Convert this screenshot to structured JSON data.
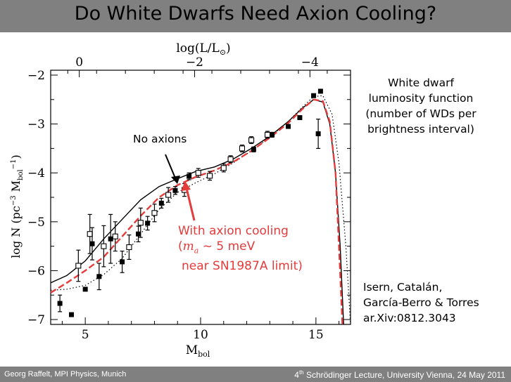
{
  "slide": {
    "title": "Do White Dwarfs Need Axion Cooling?",
    "footer_left": "Georg Raffelt, MPI Physics, Munich",
    "footer_right_prefix": "4",
    "footer_right_sup": "th",
    "footer_right_suffix": " Schrödinger Lecture, University Vienna, 24 May 2011"
  },
  "annotations": {
    "no_axions": "No axions",
    "with_axion_line1": "With axion cooling",
    "with_axion_line2_sym": "m",
    "with_axion_line2_sub": "a",
    "with_axion_line2_rest": " ~ 5 meV",
    "with_axion_line3": "near SN1987A limit)",
    "with_axion_open_paren": "(",
    "wd_desc": [
      "White dwarf",
      "luminosity function",
      "(number of WDs per",
      "brightness interval)"
    ],
    "citation": [
      "Isern, Catalán,",
      "García-Berro & Torres",
      "ar.Xiv:0812.3043"
    ]
  },
  "colors": {
    "title_bar": "#808080",
    "axion_curve": "#e53b3b",
    "data_points": "#000000"
  },
  "chart_data": {
    "type": "scatter",
    "xlabel": "M_bol",
    "ylabel": "log N (pc^-3 M_bol^-1)",
    "top_axis_label": "log(L/L_sun)",
    "xlim": [
      3.5,
      16.5
    ],
    "ylim": [
      -7.1,
      -1.9
    ],
    "xticks": [
      5,
      10,
      15
    ],
    "yticks": [
      -2,
      -3,
      -4,
      -5,
      -6,
      -7
    ],
    "top_ticks": [
      {
        "label": "0",
        "mbol": 4.74
      },
      {
        "label": "−2",
        "mbol": 9.74
      },
      {
        "label": "−4",
        "mbol": 14.74
      }
    ],
    "filled_points": [
      {
        "x": 3.9,
        "y": -6.67,
        "e": 0.17
      },
      {
        "x": 4.4,
        "y": -6.9
      },
      {
        "x": 5.0,
        "y": -6.38
      },
      {
        "x": 5.3,
        "y": -5.45,
        "e": 0.33
      },
      {
        "x": 5.6,
        "y": -6.12,
        "e": 0.27
      },
      {
        "x": 6.1,
        "y": -5.35,
        "e": 0.5
      },
      {
        "x": 6.6,
        "y": -5.82,
        "e": 0.22
      },
      {
        "x": 7.3,
        "y": -5.25,
        "e": 0.16
      },
      {
        "x": 7.7,
        "y": -5.03,
        "e": 0.14
      },
      {
        "x": 8.3,
        "y": -4.62,
        "e": 0.1
      },
      {
        "x": 8.9,
        "y": -4.36,
        "e": 0.08
      },
      {
        "x": 9.5,
        "y": -4.07,
        "e": 0.07
      },
      {
        "x": 12.3,
        "y": -3.52,
        "e": 0.05
      },
      {
        "x": 13.1,
        "y": -3.22,
        "e": 0.05
      },
      {
        "x": 13.8,
        "y": -3.05
      },
      {
        "x": 14.3,
        "y": -2.87
      },
      {
        "x": 14.9,
        "y": -2.42
      },
      {
        "x": 15.2,
        "y": -2.33
      },
      {
        "x": 15.1,
        "y": -3.2,
        "e": 0.3
      }
    ],
    "open_points": [
      {
        "x": 4.7,
        "y": -5.9,
        "e": 0.32
      },
      {
        "x": 5.2,
        "y": -5.25,
        "e": 0.4
      },
      {
        "x": 5.8,
        "y": -5.5,
        "e": 0.42
      },
      {
        "x": 6.3,
        "y": -5.3,
        "e": 0.3
      },
      {
        "x": 6.9,
        "y": -5.52,
        "e": 0.25
      },
      {
        "x": 7.4,
        "y": -5.02,
        "e": 0.3
      },
      {
        "x": 8.0,
        "y": -4.82,
        "e": 0.18
      },
      {
        "x": 8.6,
        "y": -4.45,
        "e": 0.15
      },
      {
        "x": 9.3,
        "y": -4.35,
        "e": 0.13
      },
      {
        "x": 9.9,
        "y": -4.0,
        "e": 0.09
      },
      {
        "x": 10.4,
        "y": -4.06,
        "e": 0.09
      },
      {
        "x": 11.0,
        "y": -3.9,
        "e": 0.08
      },
      {
        "x": 11.3,
        "y": -3.72,
        "e": 0.07
      },
      {
        "x": 11.8,
        "y": -3.5,
        "e": 0.07
      },
      {
        "x": 12.2,
        "y": -3.33,
        "e": 0.07
      },
      {
        "x": 12.9,
        "y": -3.22,
        "e": 0.07
      }
    ],
    "curves": [
      {
        "style": "solid-black",
        "points": [
          [
            3.5,
            -6.25
          ],
          [
            4.2,
            -6.1
          ],
          [
            5.0,
            -5.8
          ],
          [
            5.8,
            -5.35
          ],
          [
            6.6,
            -4.95
          ],
          [
            7.4,
            -4.55
          ],
          [
            8.2,
            -4.28
          ],
          [
            9.0,
            -4.12
          ],
          [
            9.8,
            -3.97
          ],
          [
            10.6,
            -3.88
          ],
          [
            11.4,
            -3.72
          ],
          [
            12.2,
            -3.5
          ],
          [
            13.0,
            -3.25
          ],
          [
            13.8,
            -2.95
          ],
          [
            14.4,
            -2.68
          ],
          [
            14.9,
            -2.5
          ],
          [
            15.3,
            -2.55
          ],
          [
            15.6,
            -3.0
          ],
          [
            15.85,
            -4.0
          ],
          [
            16.05,
            -5.5
          ],
          [
            16.2,
            -7.1
          ]
        ]
      },
      {
        "style": "dotted-black",
        "points": [
          [
            3.5,
            -6.4
          ],
          [
            4.2,
            -6.38
          ],
          [
            5.0,
            -6.3
          ],
          [
            5.8,
            -6.08
          ],
          [
            6.6,
            -5.75
          ],
          [
            7.4,
            -5.25
          ],
          [
            8.2,
            -4.75
          ],
          [
            9.0,
            -4.4
          ],
          [
            9.8,
            -4.2
          ],
          [
            10.6,
            -4.02
          ],
          [
            11.4,
            -3.8
          ],
          [
            12.2,
            -3.55
          ],
          [
            13.0,
            -3.27
          ],
          [
            13.8,
            -2.95
          ],
          [
            14.4,
            -2.66
          ],
          [
            14.9,
            -2.44
          ],
          [
            15.3,
            -2.42
          ],
          [
            15.7,
            -2.8
          ],
          [
            16.0,
            -3.8
          ],
          [
            16.3,
            -5.5
          ],
          [
            16.5,
            -7.1
          ]
        ]
      },
      {
        "style": "dashed-red",
        "points": [
          [
            3.5,
            -6.45
          ],
          [
            4.2,
            -6.25
          ],
          [
            5.0,
            -6.0
          ],
          [
            5.8,
            -5.72
          ],
          [
            6.6,
            -5.3
          ],
          [
            7.4,
            -4.88
          ],
          [
            8.2,
            -4.5
          ],
          [
            9.0,
            -4.25
          ],
          [
            9.8,
            -4.08
          ],
          [
            10.6,
            -3.95
          ],
          [
            11.4,
            -3.78
          ],
          [
            12.2,
            -3.55
          ],
          [
            13.0,
            -3.28
          ],
          [
            13.8,
            -2.98
          ],
          [
            14.4,
            -2.7
          ],
          [
            14.9,
            -2.5
          ],
          [
            15.3,
            -2.53
          ],
          [
            15.6,
            -2.95
          ],
          [
            15.85,
            -4.0
          ],
          [
            16.0,
            -5.5
          ],
          [
            16.15,
            -7.1
          ]
        ]
      }
    ]
  }
}
